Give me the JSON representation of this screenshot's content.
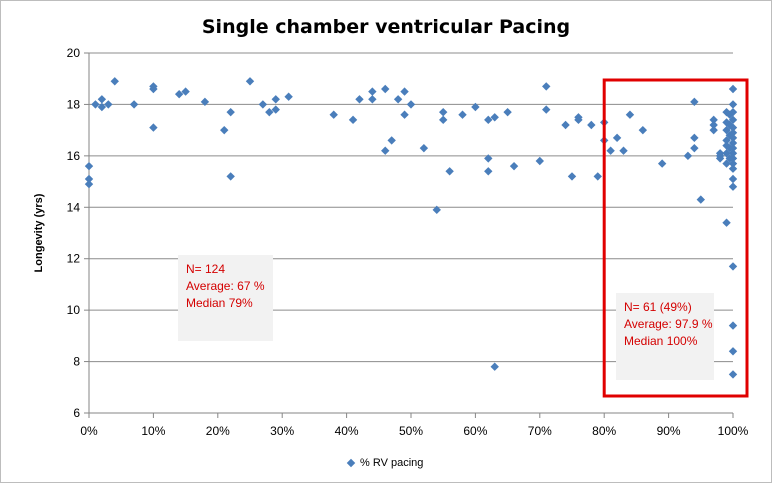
{
  "chart_data": {
    "type": "scatter",
    "title": "Single chamber ventricular Pacing",
    "xlabel": "",
    "ylabel": "Longevity (yrs)",
    "xlim": [
      0,
      1
    ],
    "ylim": [
      6,
      20
    ],
    "xticks": [
      "0%",
      "10%",
      "20%",
      "30%",
      "40%",
      "50%",
      "60%",
      "70%",
      "80%",
      "90%",
      "100%"
    ],
    "yticks": [
      "6",
      "8",
      "10",
      "12",
      "14",
      "16",
      "18",
      "20"
    ],
    "grid": "horizontal",
    "legend_position": "bottom",
    "series": [
      {
        "name": "% RV pacing",
        "color": "#4a7ebb",
        "marker": "diamond",
        "points": [
          [
            0.0,
            15.6
          ],
          [
            0.0,
            15.1
          ],
          [
            0.0,
            14.9
          ],
          [
            0.01,
            18.0
          ],
          [
            0.02,
            18.2
          ],
          [
            0.02,
            17.9
          ],
          [
            0.03,
            18.0
          ],
          [
            0.04,
            18.9
          ],
          [
            0.07,
            18.0
          ],
          [
            0.1,
            18.7
          ],
          [
            0.1,
            18.6
          ],
          [
            0.1,
            17.1
          ],
          [
            0.14,
            18.4
          ],
          [
            0.15,
            18.5
          ],
          [
            0.18,
            18.1
          ],
          [
            0.21,
            17.0
          ],
          [
            0.22,
            17.7
          ],
          [
            0.22,
            15.2
          ],
          [
            0.25,
            18.9
          ],
          [
            0.27,
            18.0
          ],
          [
            0.28,
            17.7
          ],
          [
            0.29,
            18.2
          ],
          [
            0.29,
            17.8
          ],
          [
            0.31,
            18.3
          ],
          [
            0.38,
            17.6
          ],
          [
            0.41,
            17.4
          ],
          [
            0.42,
            18.2
          ],
          [
            0.44,
            18.5
          ],
          [
            0.44,
            18.2
          ],
          [
            0.46,
            18.6
          ],
          [
            0.46,
            16.2
          ],
          [
            0.47,
            16.6
          ],
          [
            0.48,
            18.2
          ],
          [
            0.49,
            18.5
          ],
          [
            0.49,
            17.6
          ],
          [
            0.5,
            18.0
          ],
          [
            0.52,
            16.3
          ],
          [
            0.54,
            13.9
          ],
          [
            0.55,
            17.7
          ],
          [
            0.55,
            17.4
          ],
          [
            0.56,
            15.4
          ],
          [
            0.58,
            17.6
          ],
          [
            0.6,
            17.9
          ],
          [
            0.62,
            17.4
          ],
          [
            0.62,
            15.9
          ],
          [
            0.62,
            15.4
          ],
          [
            0.63,
            17.5
          ],
          [
            0.63,
            7.8
          ],
          [
            0.65,
            17.7
          ],
          [
            0.66,
            15.6
          ],
          [
            0.7,
            15.8
          ],
          [
            0.71,
            18.7
          ],
          [
            0.71,
            17.8
          ],
          [
            0.74,
            17.2
          ],
          [
            0.75,
            15.2
          ],
          [
            0.76,
            17.5
          ],
          [
            0.76,
            17.4
          ],
          [
            0.78,
            17.2
          ],
          [
            0.79,
            15.2
          ],
          [
            0.8,
            17.3
          ],
          [
            0.8,
            16.6
          ],
          [
            0.81,
            16.2
          ],
          [
            0.82,
            16.7
          ],
          [
            0.83,
            16.2
          ],
          [
            0.84,
            17.6
          ],
          [
            0.86,
            17.0
          ],
          [
            0.89,
            15.7
          ],
          [
            0.93,
            16.0
          ],
          [
            0.94,
            18.1
          ],
          [
            0.94,
            16.7
          ],
          [
            0.94,
            16.3
          ],
          [
            0.95,
            14.3
          ],
          [
            0.97,
            17.4
          ],
          [
            0.97,
            17.2
          ],
          [
            0.97,
            17.0
          ],
          [
            0.98,
            16.1
          ],
          [
            0.98,
            16.0
          ],
          [
            0.98,
            15.9
          ],
          [
            0.99,
            17.7
          ],
          [
            0.99,
            17.3
          ],
          [
            0.99,
            17.0
          ],
          [
            0.99,
            16.6
          ],
          [
            0.99,
            16.4
          ],
          [
            0.99,
            16.1
          ],
          [
            0.99,
            15.7
          ],
          [
            0.99,
            13.4
          ],
          [
            0.995,
            17.6
          ],
          [
            0.995,
            17.2
          ],
          [
            0.995,
            16.8
          ],
          [
            0.995,
            16.3
          ],
          [
            0.995,
            15.9
          ],
          [
            1.0,
            18.6
          ],
          [
            1.0,
            18.0
          ],
          [
            1.0,
            17.7
          ],
          [
            1.0,
            17.4
          ],
          [
            1.0,
            17.1
          ],
          [
            1.0,
            16.9
          ],
          [
            1.0,
            16.7
          ],
          [
            1.0,
            16.5
          ],
          [
            1.0,
            16.3
          ],
          [
            1.0,
            16.1
          ],
          [
            1.0,
            15.9
          ],
          [
            1.0,
            15.7
          ],
          [
            1.0,
            15.5
          ],
          [
            1.0,
            15.1
          ],
          [
            1.0,
            14.8
          ],
          [
            1.0,
            11.7
          ],
          [
            1.0,
            9.4
          ],
          [
            1.0,
            8.4
          ],
          [
            1.0,
            7.5
          ]
        ]
      }
    ],
    "annotations": [
      {
        "lines": [
          "N= 124",
          "Average: 67 %",
          "Median 79%"
        ],
        "color": "#d40000"
      },
      {
        "lines": [
          "N= 61  (49%)",
          "Average: 97.9 %",
          "Median 100%"
        ],
        "color": "#d40000"
      }
    ],
    "highlight_region": {
      "x_from": 0.8,
      "x_to": 1.0,
      "color": "#e00000"
    }
  }
}
